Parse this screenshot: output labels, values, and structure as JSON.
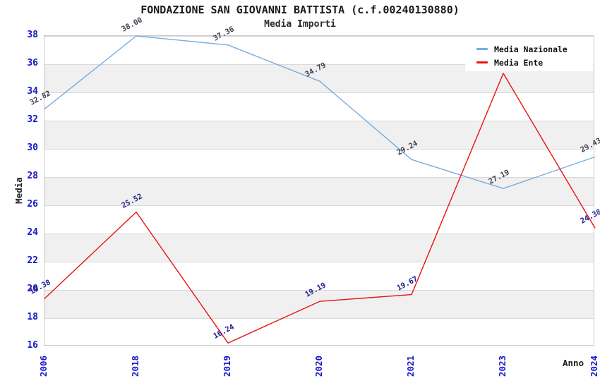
{
  "title": "FONDAZIONE SAN GIOVANNI BATTISTA (c.f.00240130880)",
  "subtitle": "Media Importi",
  "axes": {
    "y_label": "Media",
    "x_label": "Anno",
    "y_ticks": [
      38,
      36,
      34,
      32,
      30,
      28,
      26,
      24,
      22,
      20,
      18,
      16
    ],
    "tick_color": "#1616cc",
    "band_color": "#f0f0f0",
    "grid_color": "#d9d9d9"
  },
  "legend": {
    "items": [
      {
        "label": "Media Nazionale",
        "color": "#76ade0"
      },
      {
        "label": "Media Ente",
        "color": "#e81212"
      }
    ]
  },
  "chart_data": {
    "type": "line",
    "x": [
      "2006",
      "2018",
      "2019",
      "2020",
      "2021",
      "2023",
      "2024"
    ],
    "xlabel": "Anno",
    "ylabel": "Media",
    "ylim": [
      16,
      38
    ],
    "grid": true,
    "legend_position": "top-right",
    "series": [
      {
        "name": "Media Nazionale",
        "color": "#76ade0",
        "values": [
          32.82,
          38.0,
          37.36,
          34.79,
          29.24,
          27.19,
          29.43
        ],
        "labels": [
          "32.82",
          "38.00",
          "37.36",
          "34.79",
          "29.24",
          "27.19",
          "29.43"
        ],
        "label_color": "#3f3f4f"
      },
      {
        "name": "Media Ente",
        "color": "#e81212",
        "values": [
          19.38,
          25.52,
          16.24,
          19.19,
          19.67,
          35.35,
          24.38
        ],
        "labels": [
          "19.38",
          "25.52",
          "16.24",
          "19.19",
          "19.67",
          null,
          "24.38"
        ],
        "label_color": "#22228e"
      }
    ]
  }
}
